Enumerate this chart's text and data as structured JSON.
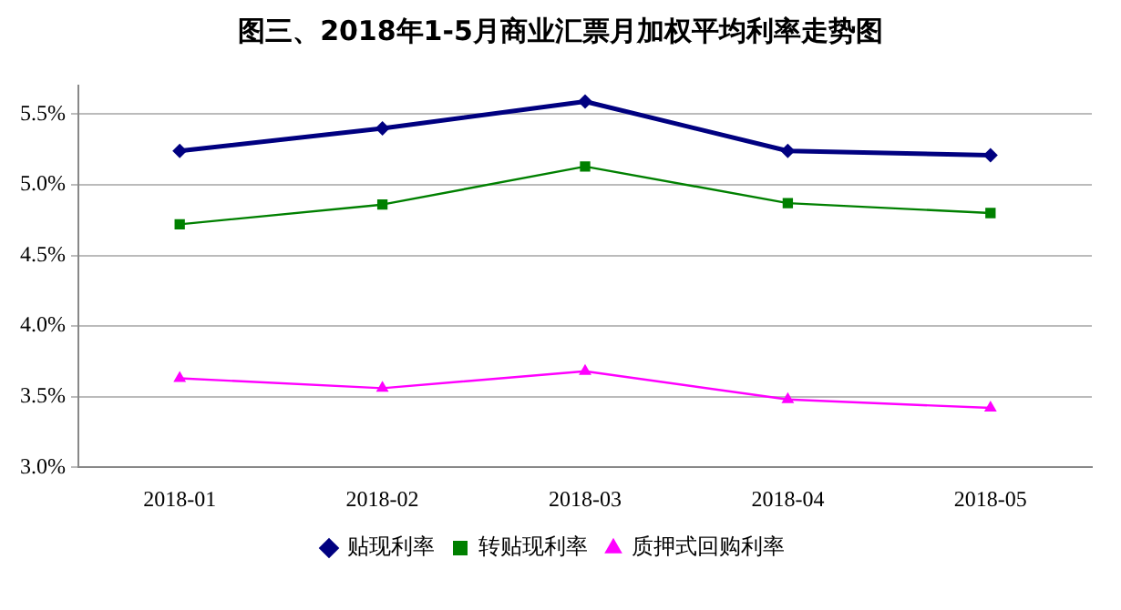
{
  "chart_data": {
    "type": "line",
    "title": "图三、2018年1-5月商业汇票月加权平均利率走势图",
    "categories": [
      "2018-01",
      "2018-02",
      "2018-03",
      "2018-04",
      "2018-05"
    ],
    "series": [
      {
        "name": "贴现利率",
        "color": "#000080",
        "values": [
          5.24,
          5.4,
          5.59,
          5.24,
          5.21
        ],
        "marker": "diamond"
      },
      {
        "name": "转贴现利率",
        "color": "#008000",
        "values": [
          4.72,
          4.86,
          5.13,
          4.87,
          4.8
        ],
        "marker": "square"
      },
      {
        "name": "质押式回购利率",
        "color": "#ff00ff",
        "values": [
          3.63,
          3.56,
          3.68,
          3.48,
          3.42
        ],
        "marker": "triangle"
      }
    ],
    "ylim": [
      3.0,
      5.7
    ],
    "yticks": [
      {
        "value": 3.0,
        "label": "3.0%"
      },
      {
        "value": 3.5,
        "label": "3.5%"
      },
      {
        "value": 4.0,
        "label": "4.0%"
      },
      {
        "value": 4.5,
        "label": "4.5%"
      },
      {
        "value": 5.0,
        "label": "5.0%"
      },
      {
        "value": 5.5,
        "label": "5.5%"
      }
    ],
    "grid": "y",
    "legend": "bottom",
    "line_style": "solid"
  }
}
